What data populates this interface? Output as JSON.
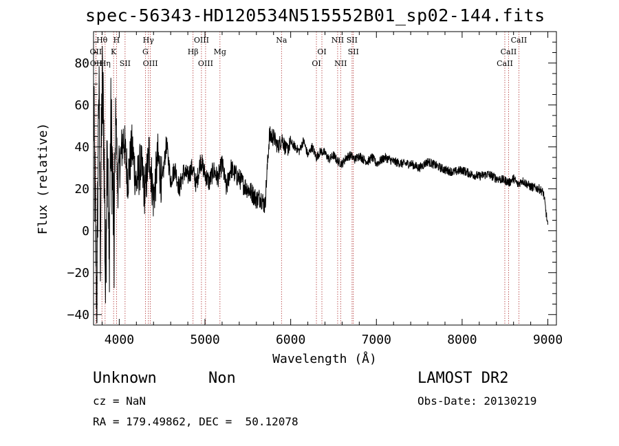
{
  "header": {
    "title": "spec-56343-HD120534N515552B01_sp02-144.fits"
  },
  "footer": {
    "class_label": "Unknown",
    "subclass_label": "Non",
    "survey_label": "LAMOST DR2",
    "cz_text": "cz = NaN",
    "obs_date_text": "Obs-Date: 20130219",
    "coords_text": "RA = 179.49862, DEC =  50.12078"
  },
  "chart_data": {
    "type": "line",
    "title": "spec-56343-HD120534N515552B01_sp02-144.fits",
    "xlabel": "Wavelength (Å)",
    "ylabel": "Flux (relative)",
    "xlim": [
      3700,
      9100
    ],
    "ylim": [
      -45,
      95
    ],
    "xticks": [
      4000,
      5000,
      6000,
      7000,
      8000,
      9000
    ],
    "yticks": [
      -40,
      -20,
      0,
      20,
      40,
      60,
      80
    ],
    "grid": false,
    "line_color": "#000000",
    "marker_color": "#b03030",
    "series": [
      {
        "x": [
          3700,
          3720,
          3740,
          3760,
          3780,
          3800,
          3820,
          3840,
          3860,
          3880,
          3900,
          3920,
          3940,
          3960,
          3980,
          4000,
          4050,
          4100,
          4150,
          4200,
          4250,
          4300,
          4350,
          4400,
          4450,
          4500,
          4550,
          4600,
          4650,
          4700,
          4750,
          4800,
          4850,
          4900,
          4950,
          5000,
          5050,
          5100,
          5150,
          5200,
          5250,
          5300,
          5350,
          5400,
          5450,
          5500,
          5550,
          5600,
          5650,
          5700,
          5750,
          5800,
          5850,
          5900,
          5950,
          6000,
          6050,
          6100,
          6150,
          6200,
          6250,
          6300,
          6350,
          6400,
          6450,
          6500,
          6550,
          6600,
          6650,
          6700,
          6750,
          6800,
          6850,
          6900,
          6950,
          7000,
          7100,
          7200,
          7300,
          7400,
          7500,
          7600,
          7700,
          7800,
          7900,
          8000,
          8100,
          8200,
          8300,
          8400,
          8500,
          8550,
          8600,
          8650,
          8700,
          8800,
          8900,
          8950,
          9000
        ],
        "y": [
          60,
          10,
          -38,
          75,
          -5,
          70,
          48,
          -30,
          55,
          -20,
          50,
          30,
          -10,
          62,
          20,
          30,
          45,
          25,
          40,
          22,
          32,
          18,
          38,
          15,
          35,
          22,
          42,
          24,
          30,
          20,
          28,
          26,
          30,
          22,
          34,
          27,
          23,
          29,
          25,
          32,
          20,
          30,
          27,
          25,
          22,
          20,
          18,
          15,
          16,
          12,
          45,
          45,
          40,
          44,
          38,
          42,
          40,
          38,
          43,
          36,
          40,
          35,
          38,
          37,
          34,
          36,
          33,
          32,
          35,
          36,
          34,
          36,
          34,
          33,
          35,
          32,
          35,
          33,
          32,
          32,
          30,
          33,
          31,
          29,
          28,
          29,
          27,
          26,
          27,
          25,
          24,
          23,
          25,
          22,
          24,
          21,
          20,
          18,
          2
        ]
      }
    ],
    "line_markers": [
      {
        "label": "Hθ",
        "x": 3798,
        "pos": "top1"
      },
      {
        "label": "OII",
        "x": 3727,
        "pos": "top2"
      },
      {
        "label": "OII",
        "x": 3729,
        "pos": "top3"
      },
      {
        "label": "Hη",
        "x": 3835,
        "pos": "top3"
      },
      {
        "label": "H",
        "x": 3968,
        "pos": "top1"
      },
      {
        "label": "K",
        "x": 3934,
        "pos": "top2"
      },
      {
        "label": "SII",
        "x": 4068,
        "pos": "top3"
      },
      {
        "label": "Hγ",
        "x": 4340,
        "pos": "top1"
      },
      {
        "label": "G",
        "x": 4305,
        "pos": "top2"
      },
      {
        "label": "OIII",
        "x": 4363,
        "pos": "top3"
      },
      {
        "label": "OIII",
        "x": 4959,
        "pos": "top1"
      },
      {
        "label": "Hβ",
        "x": 4861,
        "pos": "top2"
      },
      {
        "label": "OIII",
        "x": 5007,
        "pos": "top3"
      },
      {
        "label": "Mg",
        "x": 5175,
        "pos": "top2"
      },
      {
        "label": "Na",
        "x": 5893,
        "pos": "top1"
      },
      {
        "label": "OI",
        "x": 6364,
        "pos": "top2"
      },
      {
        "label": "OI",
        "x": 6300,
        "pos": "top3"
      },
      {
        "label": "NII",
        "x": 6548,
        "pos": "top1"
      },
      {
        "label": "NII",
        "x": 6583,
        "pos": "top3"
      },
      {
        "label": "SII",
        "x": 6716,
        "pos": "top1"
      },
      {
        "label": "SII",
        "x": 6731,
        "pos": "top2"
      },
      {
        "label": "CaII",
        "x": 8662,
        "pos": "top1"
      },
      {
        "label": "CaII",
        "x": 8542,
        "pos": "top2"
      },
      {
        "label": "CaII",
        "x": 8498,
        "pos": "top3"
      }
    ]
  }
}
